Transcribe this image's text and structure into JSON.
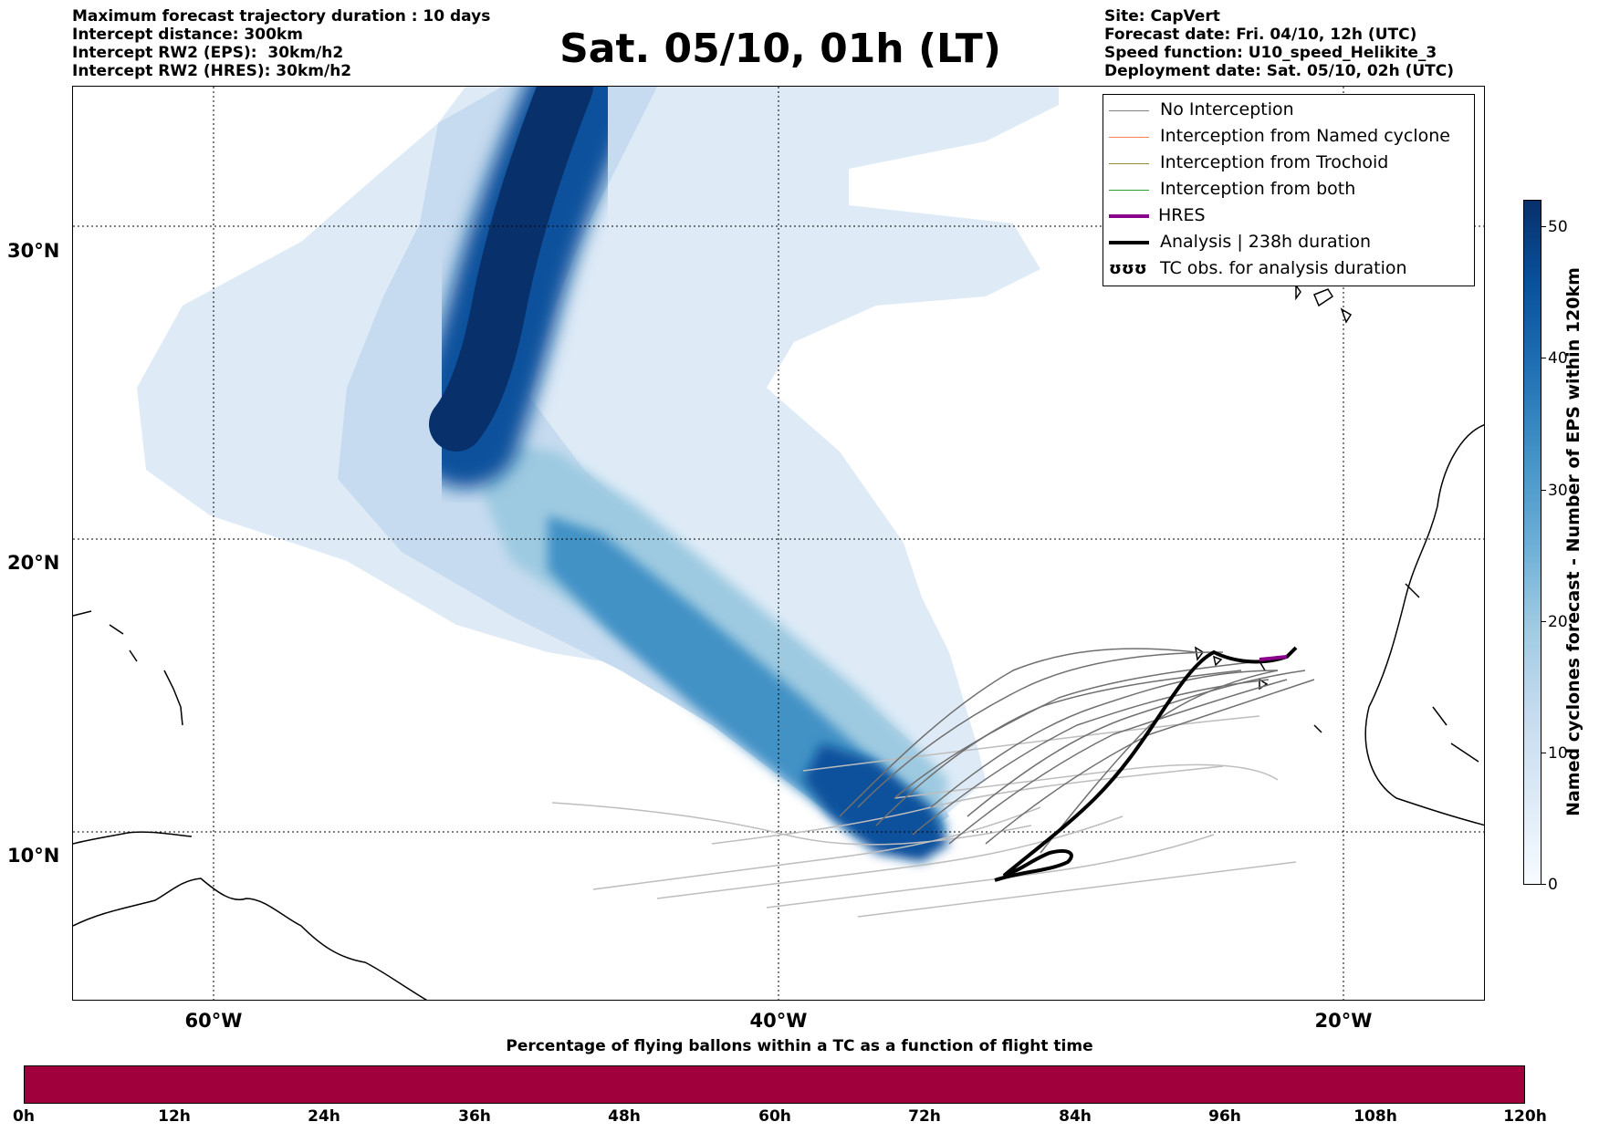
{
  "header": {
    "left": [
      "Maximum forecast trajectory duration : 10 days",
      "Intercept distance: 300km",
      "Intercept RW2 (EPS):  30km/h2",
      "Intercept RW2 (HRES): 30km/h2"
    ],
    "title": "Sat. 05/10, 01h (LT)",
    "right": [
      "Site: CapVert",
      "Forecast date: Fri. 04/10, 12h (UTC)",
      "Speed function: U10_speed_Helikite_3",
      "Deployment date: Sat. 05/10, 02h (UTC)"
    ]
  },
  "map": {
    "lat_labels": [
      "30°N",
      "20°N",
      "10°N"
    ],
    "lon_labels": [
      "60°W",
      "40°W",
      "20°W"
    ]
  },
  "legend": {
    "items": [
      {
        "label": "No Interception",
        "color": "#7f7f7f"
      },
      {
        "label": "Interception from Named cyclone",
        "color": "#ff7f50"
      },
      {
        "label": "Interception from Trochoid",
        "color": "#9a8a2e"
      },
      {
        "label": "Interception from both",
        "color": "#2ca02c"
      },
      {
        "label": "HRES",
        "color": "#8b008b"
      },
      {
        "label": "Analysis | 238h duration",
        "color": "#000000"
      },
      {
        "label": "TC obs. for analysis duration",
        "color": "#000000"
      }
    ],
    "tc_symbol": "ʊʊʊ"
  },
  "colorbar": {
    "title": "Named cyclones forecast - Number of EPS within 120km",
    "ticks": [
      "0",
      "10",
      "20",
      "30",
      "40",
      "50"
    ]
  },
  "flight_bar": {
    "title": "Percentage of flying ballons within a TC as a function of flight time",
    "ticks": [
      "0h",
      "12h",
      "24h",
      "36h",
      "48h",
      "60h",
      "72h",
      "84h",
      "96h",
      "108h",
      "120h"
    ],
    "color": "#a0003b"
  }
}
